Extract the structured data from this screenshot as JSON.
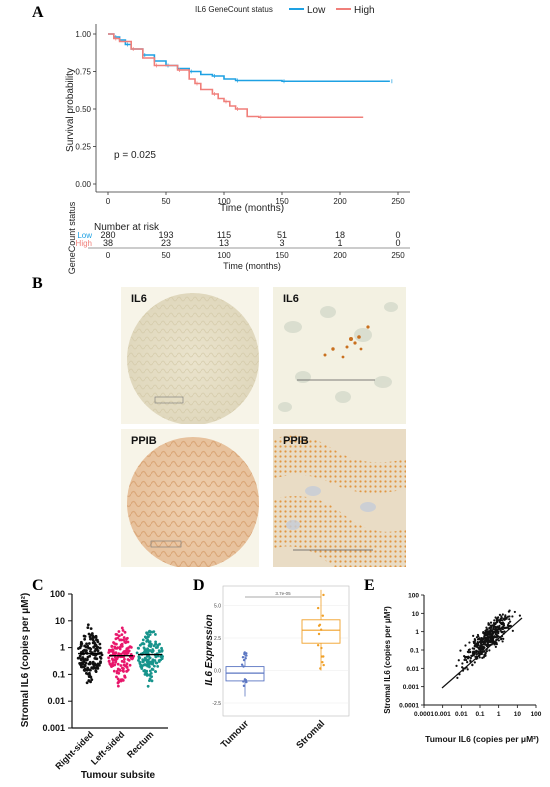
{
  "figure": {
    "panel_labels": [
      "A",
      "B",
      "C",
      "D",
      "E"
    ]
  },
  "panelA": {
    "legend_title": "IL6 GeneCount status",
    "legend_items": [
      {
        "label": "Low",
        "color": "#1ea1e3"
      },
      {
        "label": "High",
        "color": "#f07f7a"
      }
    ],
    "pvalue": "p = 0.025",
    "ylabel": "Survival probability",
    "xlabel": "Time (months)",
    "yticks": [
      "1.00",
      "0.75",
      "0.50",
      "0.25",
      "0.00"
    ],
    "xticks": [
      "0",
      "50",
      "100",
      "150",
      "200",
      "250"
    ],
    "risk_title": "Number at risk",
    "risk_ylabel": "GeneCount status",
    "risk_xlabel": "Time (months)",
    "risk_rows": [
      {
        "label": "Low",
        "color": "#1ea1e3",
        "values": [
          "280",
          "193",
          "115",
          "51",
          "18",
          "0"
        ]
      },
      {
        "label": "High",
        "color": "#f07f7a",
        "values": [
          "38",
          "23",
          "13",
          "3",
          "1",
          "0"
        ]
      }
    ]
  },
  "panelB": {
    "labels": [
      "IL6",
      "IL6",
      "PPIB",
      "PPIB"
    ]
  },
  "panelC": {
    "ylabel": "Stromal IL6 (copies per μM²)",
    "xlabel": "Tumour subsite",
    "yticks": [
      "100",
      "10",
      "1",
      "0.1",
      "0.01",
      "0.001"
    ],
    "groups": [
      {
        "label": "Right-sided",
        "color": "#111111",
        "median": 0.6
      },
      {
        "label": "Left-sided",
        "color": "#e8176b",
        "median": 0.5
      },
      {
        "label": "Rectum",
        "color": "#17948c",
        "median": 0.55
      }
    ]
  },
  "panelD": {
    "ylabel": "IL6 Expression",
    "pvalue": "3.7e-05",
    "yticks": [
      "5.0",
      "2.5",
      "0.0",
      "-2.5"
    ],
    "groups": [
      {
        "label": "Tumour",
        "color": "#5b76c2"
      },
      {
        "label": "Stromal",
        "color": "#f0a028"
      }
    ]
  },
  "panelE": {
    "ylabel": "Stromal IL6 (copies per μM²)",
    "xlabel": "Tumour IL6 (copies per μM²)",
    "yticks": [
      "100",
      "10",
      "1",
      "0.1",
      "0.01",
      "0.001",
      "0.0001"
    ],
    "xticks": [
      "0.0001",
      "0.001",
      "0.01",
      "0.1",
      "1",
      "10",
      "100"
    ]
  },
  "chart_data": [
    {
      "type": "line",
      "title": "",
      "xlabel": "Time (months)",
      "ylabel": "Survival probability",
      "xlim": [
        0,
        250
      ],
      "ylim": [
        0,
        1
      ],
      "series": [
        {
          "name": "Low",
          "x": [
            0,
            5,
            10,
            15,
            20,
            30,
            40,
            50,
            60,
            70,
            80,
            90,
            100,
            110,
            120,
            150,
            200,
            243
          ],
          "y": [
            1.0,
            0.98,
            0.96,
            0.93,
            0.9,
            0.86,
            0.82,
            0.79,
            0.77,
            0.75,
            0.73,
            0.72,
            0.7,
            0.69,
            0.69,
            0.685,
            0.685,
            0.685
          ]
        },
        {
          "name": "High",
          "x": [
            0,
            5,
            10,
            20,
            30,
            40,
            50,
            60,
            70,
            75,
            80,
            90,
            95,
            100,
            105,
            110,
            120,
            130,
            220
          ],
          "y": [
            1.0,
            0.97,
            0.95,
            0.9,
            0.84,
            0.79,
            0.79,
            0.76,
            0.7,
            0.67,
            0.63,
            0.6,
            0.57,
            0.55,
            0.52,
            0.5,
            0.45,
            0.445,
            0.445
          ]
        }
      ]
    },
    {
      "type": "scatter",
      "title": "",
      "xlabel": "Tumour subsite",
      "ylabel": "Stromal IL6 (copies per μM²)",
      "categories": [
        "Right-sided",
        "Left-sided",
        "Rectum"
      ],
      "ylim": [
        0.001,
        100
      ],
      "y_scale": "log",
      "medians": [
        0.6,
        0.5,
        0.55
      ]
    },
    {
      "type": "scatter",
      "title": "",
      "xlabel": "",
      "ylabel": "IL6 Expression",
      "categories": [
        "Tumour",
        "Stromal"
      ],
      "ylim": [
        -3.5,
        6.5
      ],
      "box_stats": [
        {
          "name": "Tumour",
          "min": -2.0,
          "q1": -0.8,
          "median": -0.2,
          "q3": 0.3,
          "max": 1.5
        },
        {
          "name": "Stromal",
          "min": 0.0,
          "q1": 2.1,
          "median": 3.1,
          "q3": 3.9,
          "max": 6.2
        }
      ]
    },
    {
      "type": "scatter",
      "title": "",
      "xlabel": "Tumour IL6 (copies per μM²)",
      "ylabel": "Stromal IL6 (copies per μM²)",
      "xlim": [
        0.0001,
        100
      ],
      "ylim": [
        0.0001,
        100
      ],
      "x_scale": "log",
      "y_scale": "log"
    }
  ]
}
